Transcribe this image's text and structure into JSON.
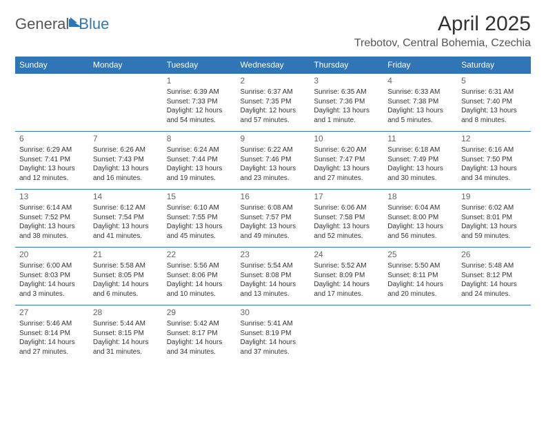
{
  "logo": {
    "text1": "General",
    "text2": "Blue"
  },
  "title": "April 2025",
  "subtitle": "Trebotov, Central Bohemia, Czechia",
  "header_bg": "#3076b7",
  "header_text_color": "#ffffff",
  "border_color": "#3076b7",
  "text_color": "#333333",
  "font_family": "Arial",
  "title_fontsize": 30,
  "subtitle_fontsize": 16,
  "header_fontsize": 12,
  "body_fontsize": 10,
  "days_of_week": [
    "Sunday",
    "Monday",
    "Tuesday",
    "Wednesday",
    "Thursday",
    "Friday",
    "Saturday"
  ],
  "weeks": [
    [
      null,
      null,
      {
        "day": "1",
        "sunrise": "Sunrise: 6:39 AM",
        "sunset": "Sunset: 7:33 PM",
        "daylight": "Daylight: 12 hours and 54 minutes."
      },
      {
        "day": "2",
        "sunrise": "Sunrise: 6:37 AM",
        "sunset": "Sunset: 7:35 PM",
        "daylight": "Daylight: 12 hours and 57 minutes."
      },
      {
        "day": "3",
        "sunrise": "Sunrise: 6:35 AM",
        "sunset": "Sunset: 7:36 PM",
        "daylight": "Daylight: 13 hours and 1 minute."
      },
      {
        "day": "4",
        "sunrise": "Sunrise: 6:33 AM",
        "sunset": "Sunset: 7:38 PM",
        "daylight": "Daylight: 13 hours and 5 minutes."
      },
      {
        "day": "5",
        "sunrise": "Sunrise: 6:31 AM",
        "sunset": "Sunset: 7:40 PM",
        "daylight": "Daylight: 13 hours and 8 minutes."
      }
    ],
    [
      {
        "day": "6",
        "sunrise": "Sunrise: 6:29 AM",
        "sunset": "Sunset: 7:41 PM",
        "daylight": "Daylight: 13 hours and 12 minutes."
      },
      {
        "day": "7",
        "sunrise": "Sunrise: 6:26 AM",
        "sunset": "Sunset: 7:43 PM",
        "daylight": "Daylight: 13 hours and 16 minutes."
      },
      {
        "day": "8",
        "sunrise": "Sunrise: 6:24 AM",
        "sunset": "Sunset: 7:44 PM",
        "daylight": "Daylight: 13 hours and 19 minutes."
      },
      {
        "day": "9",
        "sunrise": "Sunrise: 6:22 AM",
        "sunset": "Sunset: 7:46 PM",
        "daylight": "Daylight: 13 hours and 23 minutes."
      },
      {
        "day": "10",
        "sunrise": "Sunrise: 6:20 AM",
        "sunset": "Sunset: 7:47 PM",
        "daylight": "Daylight: 13 hours and 27 minutes."
      },
      {
        "day": "11",
        "sunrise": "Sunrise: 6:18 AM",
        "sunset": "Sunset: 7:49 PM",
        "daylight": "Daylight: 13 hours and 30 minutes."
      },
      {
        "day": "12",
        "sunrise": "Sunrise: 6:16 AM",
        "sunset": "Sunset: 7:50 PM",
        "daylight": "Daylight: 13 hours and 34 minutes."
      }
    ],
    [
      {
        "day": "13",
        "sunrise": "Sunrise: 6:14 AM",
        "sunset": "Sunset: 7:52 PM",
        "daylight": "Daylight: 13 hours and 38 minutes."
      },
      {
        "day": "14",
        "sunrise": "Sunrise: 6:12 AM",
        "sunset": "Sunset: 7:54 PM",
        "daylight": "Daylight: 13 hours and 41 minutes."
      },
      {
        "day": "15",
        "sunrise": "Sunrise: 6:10 AM",
        "sunset": "Sunset: 7:55 PM",
        "daylight": "Daylight: 13 hours and 45 minutes."
      },
      {
        "day": "16",
        "sunrise": "Sunrise: 6:08 AM",
        "sunset": "Sunset: 7:57 PM",
        "daylight": "Daylight: 13 hours and 49 minutes."
      },
      {
        "day": "17",
        "sunrise": "Sunrise: 6:06 AM",
        "sunset": "Sunset: 7:58 PM",
        "daylight": "Daylight: 13 hours and 52 minutes."
      },
      {
        "day": "18",
        "sunrise": "Sunrise: 6:04 AM",
        "sunset": "Sunset: 8:00 PM",
        "daylight": "Daylight: 13 hours and 56 minutes."
      },
      {
        "day": "19",
        "sunrise": "Sunrise: 6:02 AM",
        "sunset": "Sunset: 8:01 PM",
        "daylight": "Daylight: 13 hours and 59 minutes."
      }
    ],
    [
      {
        "day": "20",
        "sunrise": "Sunrise: 6:00 AM",
        "sunset": "Sunset: 8:03 PM",
        "daylight": "Daylight: 14 hours and 3 minutes."
      },
      {
        "day": "21",
        "sunrise": "Sunrise: 5:58 AM",
        "sunset": "Sunset: 8:05 PM",
        "daylight": "Daylight: 14 hours and 6 minutes."
      },
      {
        "day": "22",
        "sunrise": "Sunrise: 5:56 AM",
        "sunset": "Sunset: 8:06 PM",
        "daylight": "Daylight: 14 hours and 10 minutes."
      },
      {
        "day": "23",
        "sunrise": "Sunrise: 5:54 AM",
        "sunset": "Sunset: 8:08 PM",
        "daylight": "Daylight: 14 hours and 13 minutes."
      },
      {
        "day": "24",
        "sunrise": "Sunrise: 5:52 AM",
        "sunset": "Sunset: 8:09 PM",
        "daylight": "Daylight: 14 hours and 17 minutes."
      },
      {
        "day": "25",
        "sunrise": "Sunrise: 5:50 AM",
        "sunset": "Sunset: 8:11 PM",
        "daylight": "Daylight: 14 hours and 20 minutes."
      },
      {
        "day": "26",
        "sunrise": "Sunrise: 5:48 AM",
        "sunset": "Sunset: 8:12 PM",
        "daylight": "Daylight: 14 hours and 24 minutes."
      }
    ],
    [
      {
        "day": "27",
        "sunrise": "Sunrise: 5:46 AM",
        "sunset": "Sunset: 8:14 PM",
        "daylight": "Daylight: 14 hours and 27 minutes."
      },
      {
        "day": "28",
        "sunrise": "Sunrise: 5:44 AM",
        "sunset": "Sunset: 8:15 PM",
        "daylight": "Daylight: 14 hours and 31 minutes."
      },
      {
        "day": "29",
        "sunrise": "Sunrise: 5:42 AM",
        "sunset": "Sunset: 8:17 PM",
        "daylight": "Daylight: 14 hours and 34 minutes."
      },
      {
        "day": "30",
        "sunrise": "Sunrise: 5:41 AM",
        "sunset": "Sunset: 8:19 PM",
        "daylight": "Daylight: 14 hours and 37 minutes."
      },
      null,
      null,
      null
    ]
  ]
}
